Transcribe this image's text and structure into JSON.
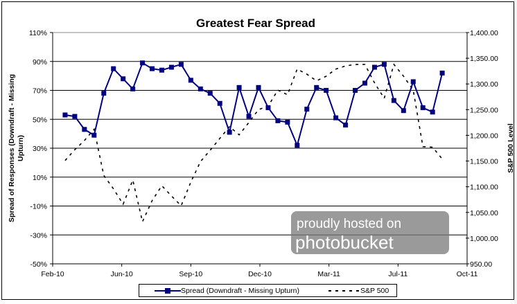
{
  "chart_data": {
    "type": "line",
    "title": "Greatest Fear Spread",
    "ylabel": "Spread of Responses (Downdraft - Missing Upturn)",
    "y2label": "S&P 500 Level",
    "ylim": [
      -50,
      110
    ],
    "y2lim": [
      950,
      1400
    ],
    "xlim": [
      "2010-02-24",
      "2011-10-17"
    ],
    "grid": true,
    "legend_position": "bottom",
    "y_ticks": [
      "110%",
      "90%",
      "70%",
      "50%",
      "30%",
      "10%",
      "-10%",
      "-30%",
      "-50%"
    ],
    "y_tick_values": [
      110,
      90,
      70,
      50,
      30,
      10,
      -10,
      -30,
      -50
    ],
    "y2_ticks": [
      "1,400.00",
      "1,350.00",
      "1,300.00",
      "1,250.00",
      "1,200.00",
      "1,150.00",
      "1,100.00",
      "1,050.00",
      "1,000.00",
      "950.00"
    ],
    "y2_tick_values": [
      1400,
      1350,
      1300,
      1250,
      1200,
      1150,
      1100,
      1050,
      1000,
      950
    ],
    "x_ticks": [
      {
        "date": "2010-02-24",
        "label": "Feb-10"
      },
      {
        "date": "2010-06-04",
        "label": "Jun-10"
      },
      {
        "date": "2010-09-12",
        "label": "Sep-10"
      },
      {
        "date": "2010-12-21",
        "label": "Dec-10"
      },
      {
        "date": "2011-03-31",
        "label": "Mar-11"
      },
      {
        "date": "2011-07-09",
        "label": "Jul-11"
      },
      {
        "date": "2011-10-17",
        "label": "Oct-11"
      }
    ],
    "x": [
      "2010-03-14",
      "2010-03-28",
      "2010-04-11",
      "2010-04-25",
      "2010-05-09",
      "2010-05-23",
      "2010-06-06",
      "2010-06-20",
      "2010-07-04",
      "2010-07-18",
      "2010-08-01",
      "2010-08-15",
      "2010-08-29",
      "2010-09-12",
      "2010-09-26",
      "2010-10-10",
      "2010-10-24",
      "2010-11-07",
      "2010-11-21",
      "2010-12-05",
      "2010-12-19",
      "2011-01-02",
      "2011-01-16",
      "2011-01-30",
      "2011-02-13",
      "2011-02-27",
      "2011-03-13",
      "2011-03-27",
      "2011-04-10",
      "2011-04-24",
      "2011-05-08",
      "2011-05-22",
      "2011-06-05",
      "2011-06-19",
      "2011-07-03",
      "2011-07-17",
      "2011-07-31",
      "2011-08-14",
      "2011-08-28",
      "2011-09-11"
    ],
    "series": [
      {
        "name": "Spread (Downdraft - Missing Upturn)",
        "axis": "left",
        "color": "#000080",
        "style": "solid-square-markers",
        "values": [
          53,
          52,
          43,
          39,
          68,
          85,
          78,
          71,
          89,
          85,
          84,
          86,
          88,
          77,
          71,
          68,
          61,
          41,
          72,
          52,
          72,
          58,
          49,
          48,
          32,
          57,
          72,
          70,
          51,
          46,
          70,
          75,
          86,
          88,
          63,
          56,
          76,
          58,
          55,
          82
        ]
      },
      {
        "name": "S&P 500",
        "axis": "right",
        "color": "#000000",
        "style": "dashed",
        "values": [
          1151,
          1172,
          1190,
          1212,
          1122,
          1096,
          1066,
          1113,
          1032,
          1073,
          1102,
          1082,
          1063,
          1109,
          1149,
          1171,
          1194,
          1217,
          1201,
          1225,
          1250,
          1257,
          1288,
          1279,
          1329,
          1319,
          1306,
          1315,
          1329,
          1335,
          1338,
          1338,
          1302,
          1272,
          1338,
          1315,
          1288,
          1178,
          1177,
          1154
        ]
      }
    ]
  },
  "watermark": {
    "line1": "proudly hosted on",
    "line2": "photobucket"
  }
}
